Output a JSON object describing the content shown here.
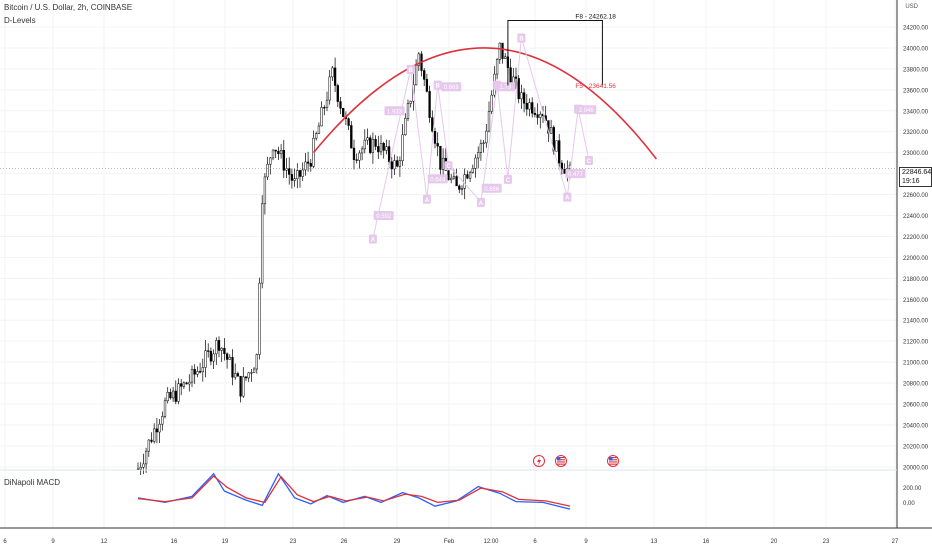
{
  "chart_title": "Bitcoin / U.S. Dollar, 2h, COINBASE",
  "indicator_name": "D-Levels",
  "macd_name": "DiNapoli MACD",
  "price_unit": "USD",
  "last_price": "22846.64",
  "countdown": "19:16",
  "colors": {
    "candle": "#000000",
    "arc": "#e0303a",
    "pattern": "#e6c8ec",
    "macd_fast": "#2962ff",
    "macd_slow": "#e0303a",
    "grid": "#f0f3f7"
  },
  "event_icons": [
    "lightning-icon",
    "us-flag-icon",
    "us-flag-icon"
  ],
  "chart_data": {
    "type": "candlestick",
    "x_tick_labels": [
      "6",
      "9",
      "12",
      "16",
      "19",
      "23",
      "26",
      "29",
      "Feb",
      "12:00",
      "6",
      "9",
      "13",
      "16",
      "20",
      "23",
      "27"
    ],
    "y_ticks": [
      "24200.00",
      "24000.00",
      "23800.00",
      "23600.00",
      "23400.00",
      "23200.00",
      "23000.00",
      "22800.00",
      "22600.00",
      "22400.00",
      "22200.00",
      "22000.00",
      "21800.00",
      "21600.00",
      "21400.00",
      "21200.00",
      "21000.00",
      "20800.00",
      "20600.00",
      "20400.00",
      "20200.00",
      "20000.00"
    ],
    "ylim": [
      19970,
      24410
    ],
    "anchors": [
      [
        0,
        19980
      ],
      [
        10,
        20600
      ],
      [
        20,
        20850
      ],
      [
        30,
        21200
      ],
      [
        38,
        20750
      ],
      [
        44,
        21050
      ],
      [
        46,
        22600
      ],
      [
        50,
        23100
      ],
      [
        58,
        22700
      ],
      [
        64,
        22950
      ],
      [
        72,
        23750
      ],
      [
        80,
        23000
      ],
      [
        88,
        23100
      ],
      [
        96,
        22850
      ],
      [
        104,
        23950
      ],
      [
        112,
        22900
      ],
      [
        118,
        22650
      ],
      [
        128,
        23100
      ],
      [
        134,
        24000
      ],
      [
        142,
        23500
      ],
      [
        150,
        23400
      ],
      [
        156,
        22950
      ],
      [
        160,
        22800
      ]
    ],
    "macd_ticks": [
      "200.00",
      "0.00"
    ],
    "macd_ylim": [
      -340,
      430
    ],
    "macd_fast": [
      [
        0,
        60
      ],
      [
        10,
        0
      ],
      [
        20,
        80
      ],
      [
        28,
        380
      ],
      [
        32,
        150
      ],
      [
        40,
        30
      ],
      [
        46,
        -40
      ],
      [
        52,
        380
      ],
      [
        58,
        60
      ],
      [
        64,
        -20
      ],
      [
        70,
        90
      ],
      [
        76,
        0
      ],
      [
        84,
        80
      ],
      [
        90,
        0
      ],
      [
        98,
        130
      ],
      [
        104,
        60
      ],
      [
        110,
        -50
      ],
      [
        118,
        20
      ],
      [
        126,
        210
      ],
      [
        134,
        120
      ],
      [
        140,
        10
      ],
      [
        150,
        0
      ],
      [
        160,
        -90
      ]
    ],
    "macd_slow": [
      [
        0,
        50
      ],
      [
        10,
        10
      ],
      [
        20,
        60
      ],
      [
        28,
        350
      ],
      [
        33,
        200
      ],
      [
        40,
        60
      ],
      [
        47,
        0
      ],
      [
        53,
        340
      ],
      [
        59,
        100
      ],
      [
        65,
        10
      ],
      [
        71,
        80
      ],
      [
        77,
        20
      ],
      [
        85,
        70
      ],
      [
        91,
        20
      ],
      [
        99,
        110
      ],
      [
        105,
        80
      ],
      [
        111,
        0
      ],
      [
        119,
        30
      ],
      [
        127,
        190
      ],
      [
        135,
        140
      ],
      [
        141,
        40
      ],
      [
        151,
        20
      ],
      [
        160,
        -50
      ]
    ],
    "arc": {
      "x_start": 65,
      "x_peak": 129,
      "x_end": 192,
      "y_start": 23000,
      "y_peak": 24000,
      "y_end": 22940
    },
    "fib_box": {
      "x_start": 137,
      "x_end": 172,
      "y_top": 24262.18,
      "y_bottom": 23641.56
    },
    "fib_labels": [
      {
        "text": "F8 - 24262.18",
        "x": 162,
        "y": 24262.18
      },
      {
        "text": "F5 - 23641.56",
        "x": 162,
        "y": 23641.56
      }
    ],
    "pattern_points": [
      {
        "label": "A",
        "x": 87,
        "y": 22180
      },
      {
        "label": "B",
        "x": 101,
        "y": 23800
      },
      {
        "label": "A",
        "x": 107,
        "y": 22560
      },
      {
        "label": "B",
        "x": 111,
        "y": 23650
      },
      {
        "label": "C",
        "x": 115,
        "y": 22880
      },
      {
        "label": "A",
        "x": 127,
        "y": 22530
      },
      {
        "label": "B",
        "x": 133,
        "y": 23650
      },
      {
        "label": "C",
        "x": 137,
        "y": 22750
      },
      {
        "label": "B",
        "x": 142,
        "y": 24100
      },
      {
        "label": "A",
        "x": 159,
        "y": 22580
      },
      {
        "label": "B",
        "x": 163,
        "y": 23420
      },
      {
        "label": "C",
        "x": 167,
        "y": 22930
      }
    ],
    "pattern_values": [
      {
        "text": "0.592",
        "x": 91,
        "y": 22400
      },
      {
        "text": "1.933",
        "x": 95,
        "y": 23400
      },
      {
        "text": "0.644",
        "x": 111,
        "y": 22750
      },
      {
        "text": "0.668",
        "x": 116,
        "y": 23630
      },
      {
        "text": "0.686",
        "x": 131,
        "y": 22660
      },
      {
        "text": "1.79",
        "x": 136,
        "y": 23630
      },
      {
        "text": "0.477",
        "x": 162,
        "y": 22800
      },
      {
        "text": "2.046",
        "x": 166,
        "y": 23410
      }
    ]
  }
}
